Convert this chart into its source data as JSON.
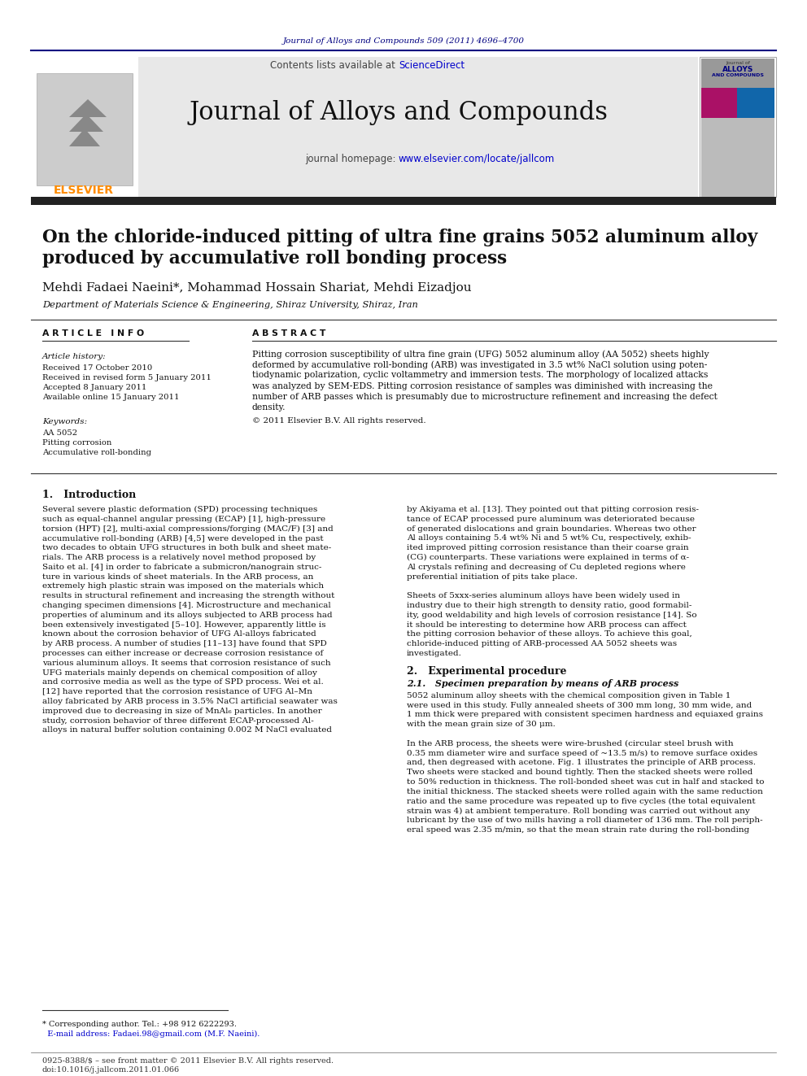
{
  "page_bg": "#ffffff",
  "top_journal_ref": "Journal of Alloys and Compounds 509 (2011) 4696–4700",
  "top_journal_ref_color": "#000080",
  "header_bg": "#e8e8e8",
  "header_journal_name": "Journal of Alloys and Compounds",
  "header_contents_text": "Contents lists available at ",
  "header_sciencedirect": "ScienceDirect",
  "header_sciencedirect_color": "#0000cc",
  "header_homepage_text": "journal homepage: ",
  "header_homepage_url": "www.elsevier.com/locate/jallcom",
  "header_homepage_url_color": "#0000cc",
  "elsevier_color": "#ff8c00",
  "dark_bar_color": "#1a1a1a",
  "title_line1": "On the chloride-induced pitting of ultra fine grains 5052 aluminum alloy",
  "title_line2": "produced by accumulative roll bonding process",
  "authors": "Mehdi Fadaei Naeini*, Mohammad Hossain Shariat, Mehdi Eizadjou",
  "affiliation": "Department of Materials Science & Engineering, Shiraz University, Shiraz, Iran",
  "article_info_title": "A R T I C L E   I N F O",
  "abstract_title": "A B S T R A C T",
  "article_history_title": "Article history:",
  "received_1": "Received 17 October 2010",
  "received_2": "Received in revised form 5 January 2011",
  "accepted": "Accepted 8 January 2011",
  "available": "Available online 15 January 2011",
  "keywords_title": "Keywords:",
  "keyword1": "AA 5052",
  "keyword2": "Pitting corrosion",
  "keyword3": "Accumulative roll-bonding",
  "abstract_text": "Pitting corrosion susceptibility of ultra fine grain (UFG) 5052 aluminum alloy (AA 5052) sheets highly\ndeformed by accumulative roll-bonding (ARB) was investigated in 3.5 wt% NaCl solution using poten-\ntiodynamic polarization, cyclic voltammetry and immersion tests. The morphology of localized attacks\nwas analyzed by SEM-EDS. Pitting corrosion resistance of samples was diminished with increasing the\nnumber of ARB passes which is presumably due to microstructure refinement and increasing the defect\ndensity.",
  "copyright_text": "© 2011 Elsevier B.V. All rights reserved.",
  "section1_title": "1.   Introduction",
  "intro_col1": "Several severe plastic deformation (SPD) processing techniques\nsuch as equal-channel angular pressing (ECAP) [1], high-pressure\ntorsion (HPT) [2], multi-axial compressions/forging (MAC/F) [3] and\naccumulative roll-bonding (ARB) [4,5] were developed in the past\ntwo decades to obtain UFG structures in both bulk and sheet mate-\nrials. The ARB process is a relatively novel method proposed by\nSaito et al. [4] in order to fabricate a submicron/nanograin struc-\nture in various kinds of sheet materials. In the ARB process, an\nextremely high plastic strain was imposed on the materials which\nresults in structural refinement and increasing the strength without\nchanging specimen dimensions [4]. Microstructure and mechanical\nproperties of aluminum and its alloys subjected to ARB process had\nbeen extensively investigated [5–10]. However, apparently little is\nknown about the corrosion behavior of UFG Al-alloys fabricated\nby ARB process. A number of studies [11–13] have found that SPD\nprocesses can either increase or decrease corrosion resistance of\nvarious aluminum alloys. It seems that corrosion resistance of such\nUFG materials mainly depends on chemical composition of alloy\nand corrosive media as well as the type of SPD process. Wei et al.\n[12] have reported that the corrosion resistance of UFG Al–Mn\nalloy fabricated by ARB process in 3.5% NaCl artificial seawater was\nimproved due to decreasing in size of MnAl₆ particles. In another\nstudy, corrosion behavior of three different ECAP-processed Al-\nalloys in natural buffer solution containing 0.002 M NaCl evaluated",
  "intro_col2": "by Akiyama et al. [13]. They pointed out that pitting corrosion resis-\ntance of ECAP processed pure aluminum was deteriorated because\nof generated dislocations and grain boundaries. Whereas two other\nAl alloys containing 5.4 wt% Ni and 5 wt% Cu, respectively, exhib-\nited improved pitting corrosion resistance than their coarse grain\n(CG) counterparts. These variations were explained in terms of α-\nAl crystals refining and decreasing of Cu depleted regions where\npreferential initiation of pits take place.\n\nSheets of 5xxx-series aluminum alloys have been widely used in\nindustry due to their high strength to density ratio, good formabil-\nity, good weldability and high levels of corrosion resistance [14]. So\nit should be interesting to determine how ARB process can affect\nthe pitting corrosion behavior of these alloys. To achieve this goal,\nchloride-induced pitting of ARB-processed AA 5052 sheets was\ninvestigated.",
  "section2_title": "2.   Experimental procedure",
  "section21_title": "2.1.   Specimen preparation by means of ARB process",
  "exp_text": "5052 aluminum alloy sheets with the chemical composition given in Table 1\nwere used in this study. Fully annealed sheets of 300 mm long, 30 mm wide, and\n1 mm thick were prepared with consistent specimen hardness and equiaxed grains\nwith the mean grain size of 30 μm.\n\nIn the ARB process, the sheets were wire-brushed (circular steel brush with\n0.35 mm diameter wire and surface speed of ~13.5 m/s) to remove surface oxides\nand, then degreased with acetone. Fig. 1 illustrates the principle of ARB process.\nTwo sheets were stacked and bound tightly. Then the stacked sheets were rolled\nto 50% reduction in thickness. The roll-bonded sheet was cut in half and stacked to\nthe initial thickness. The stacked sheets were rolled again with the same reduction\nratio and the same procedure was repeated up to five cycles (the total equivalent\nstrain was 4) at ambient temperature. Roll bonding was carried out without any\nlubricant by the use of two mills having a roll diameter of 136 mm. The roll periph-\neral speed was 2.35 m/min, so that the mean strain rate during the roll-bonding",
  "footnote1": "* Corresponding author. Tel.: +98 912 6222293.",
  "footnote2": "  E-mail address: Fadaei.98@gmail.com (M.F. Naeini).",
  "footer1": "0925-8388/$ – see front matter © 2011 Elsevier B.V. All rights reserved.",
  "footer2": "doi:10.1016/j.jallcom.2011.01.066"
}
